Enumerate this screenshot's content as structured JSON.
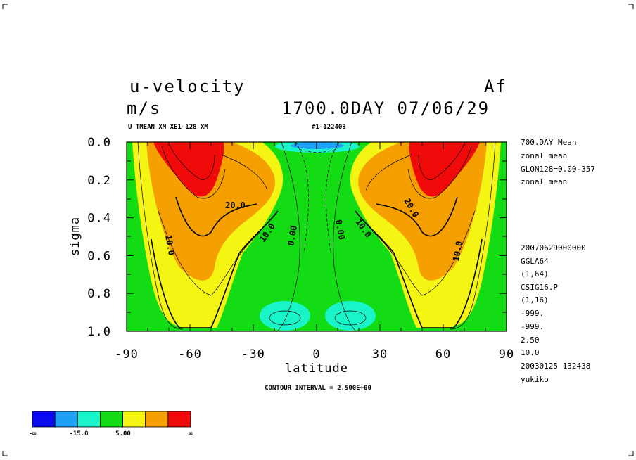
{
  "header": {
    "title": "u-velocity",
    "title_right": "Af",
    "units": "m/s",
    "time_label": "1700.0DAY 07/06/29",
    "subtitle_left": "U TMEAN XM XE1-128 XM",
    "subtitle_right": "#1-122403"
  },
  "side_info": [
    "700.DAY Mean",
    "zonal mean",
    "GLON128=0.00-357",
    "zonal mean",
    "20070629000000",
    "GGLA64",
    "(1,64)",
    "CSIG16.P",
    "(1,16)",
    "-999.",
    "-999.",
    "2.50",
    "10.0",
    "20030125 132438",
    "yukiko"
  ],
  "footer": {
    "contour_interval": "CONTOUR INTERVAL = 2.500E+00"
  },
  "colorbar": {
    "colors": [
      "#0a0af0",
      "#1ea0f5",
      "#19f5c8",
      "#14dc14",
      "#f5f514",
      "#f5a000",
      "#f00a0a"
    ],
    "labels": [
      "-∞",
      "-15.0",
      "5.00",
      "∞"
    ]
  },
  "chart_data": {
    "type": "contour",
    "xlabel": "latitude",
    "ylabel": "sigma",
    "xlim": [
      -90,
      90
    ],
    "ylim": [
      1.0,
      0.0
    ],
    "x_ticks": [
      "-90",
      "-60",
      "-30",
      "0",
      "30",
      "60",
      "90"
    ],
    "y_ticks": [
      "0.0",
      "0.2",
      "0.4",
      "0.6",
      "0.8",
      "1.0"
    ],
    "contour_labels": [
      "20.0",
      "10.0",
      "0.00",
      "0.00",
      "10.0",
      "20.0",
      "10.0",
      "10.0"
    ]
  }
}
